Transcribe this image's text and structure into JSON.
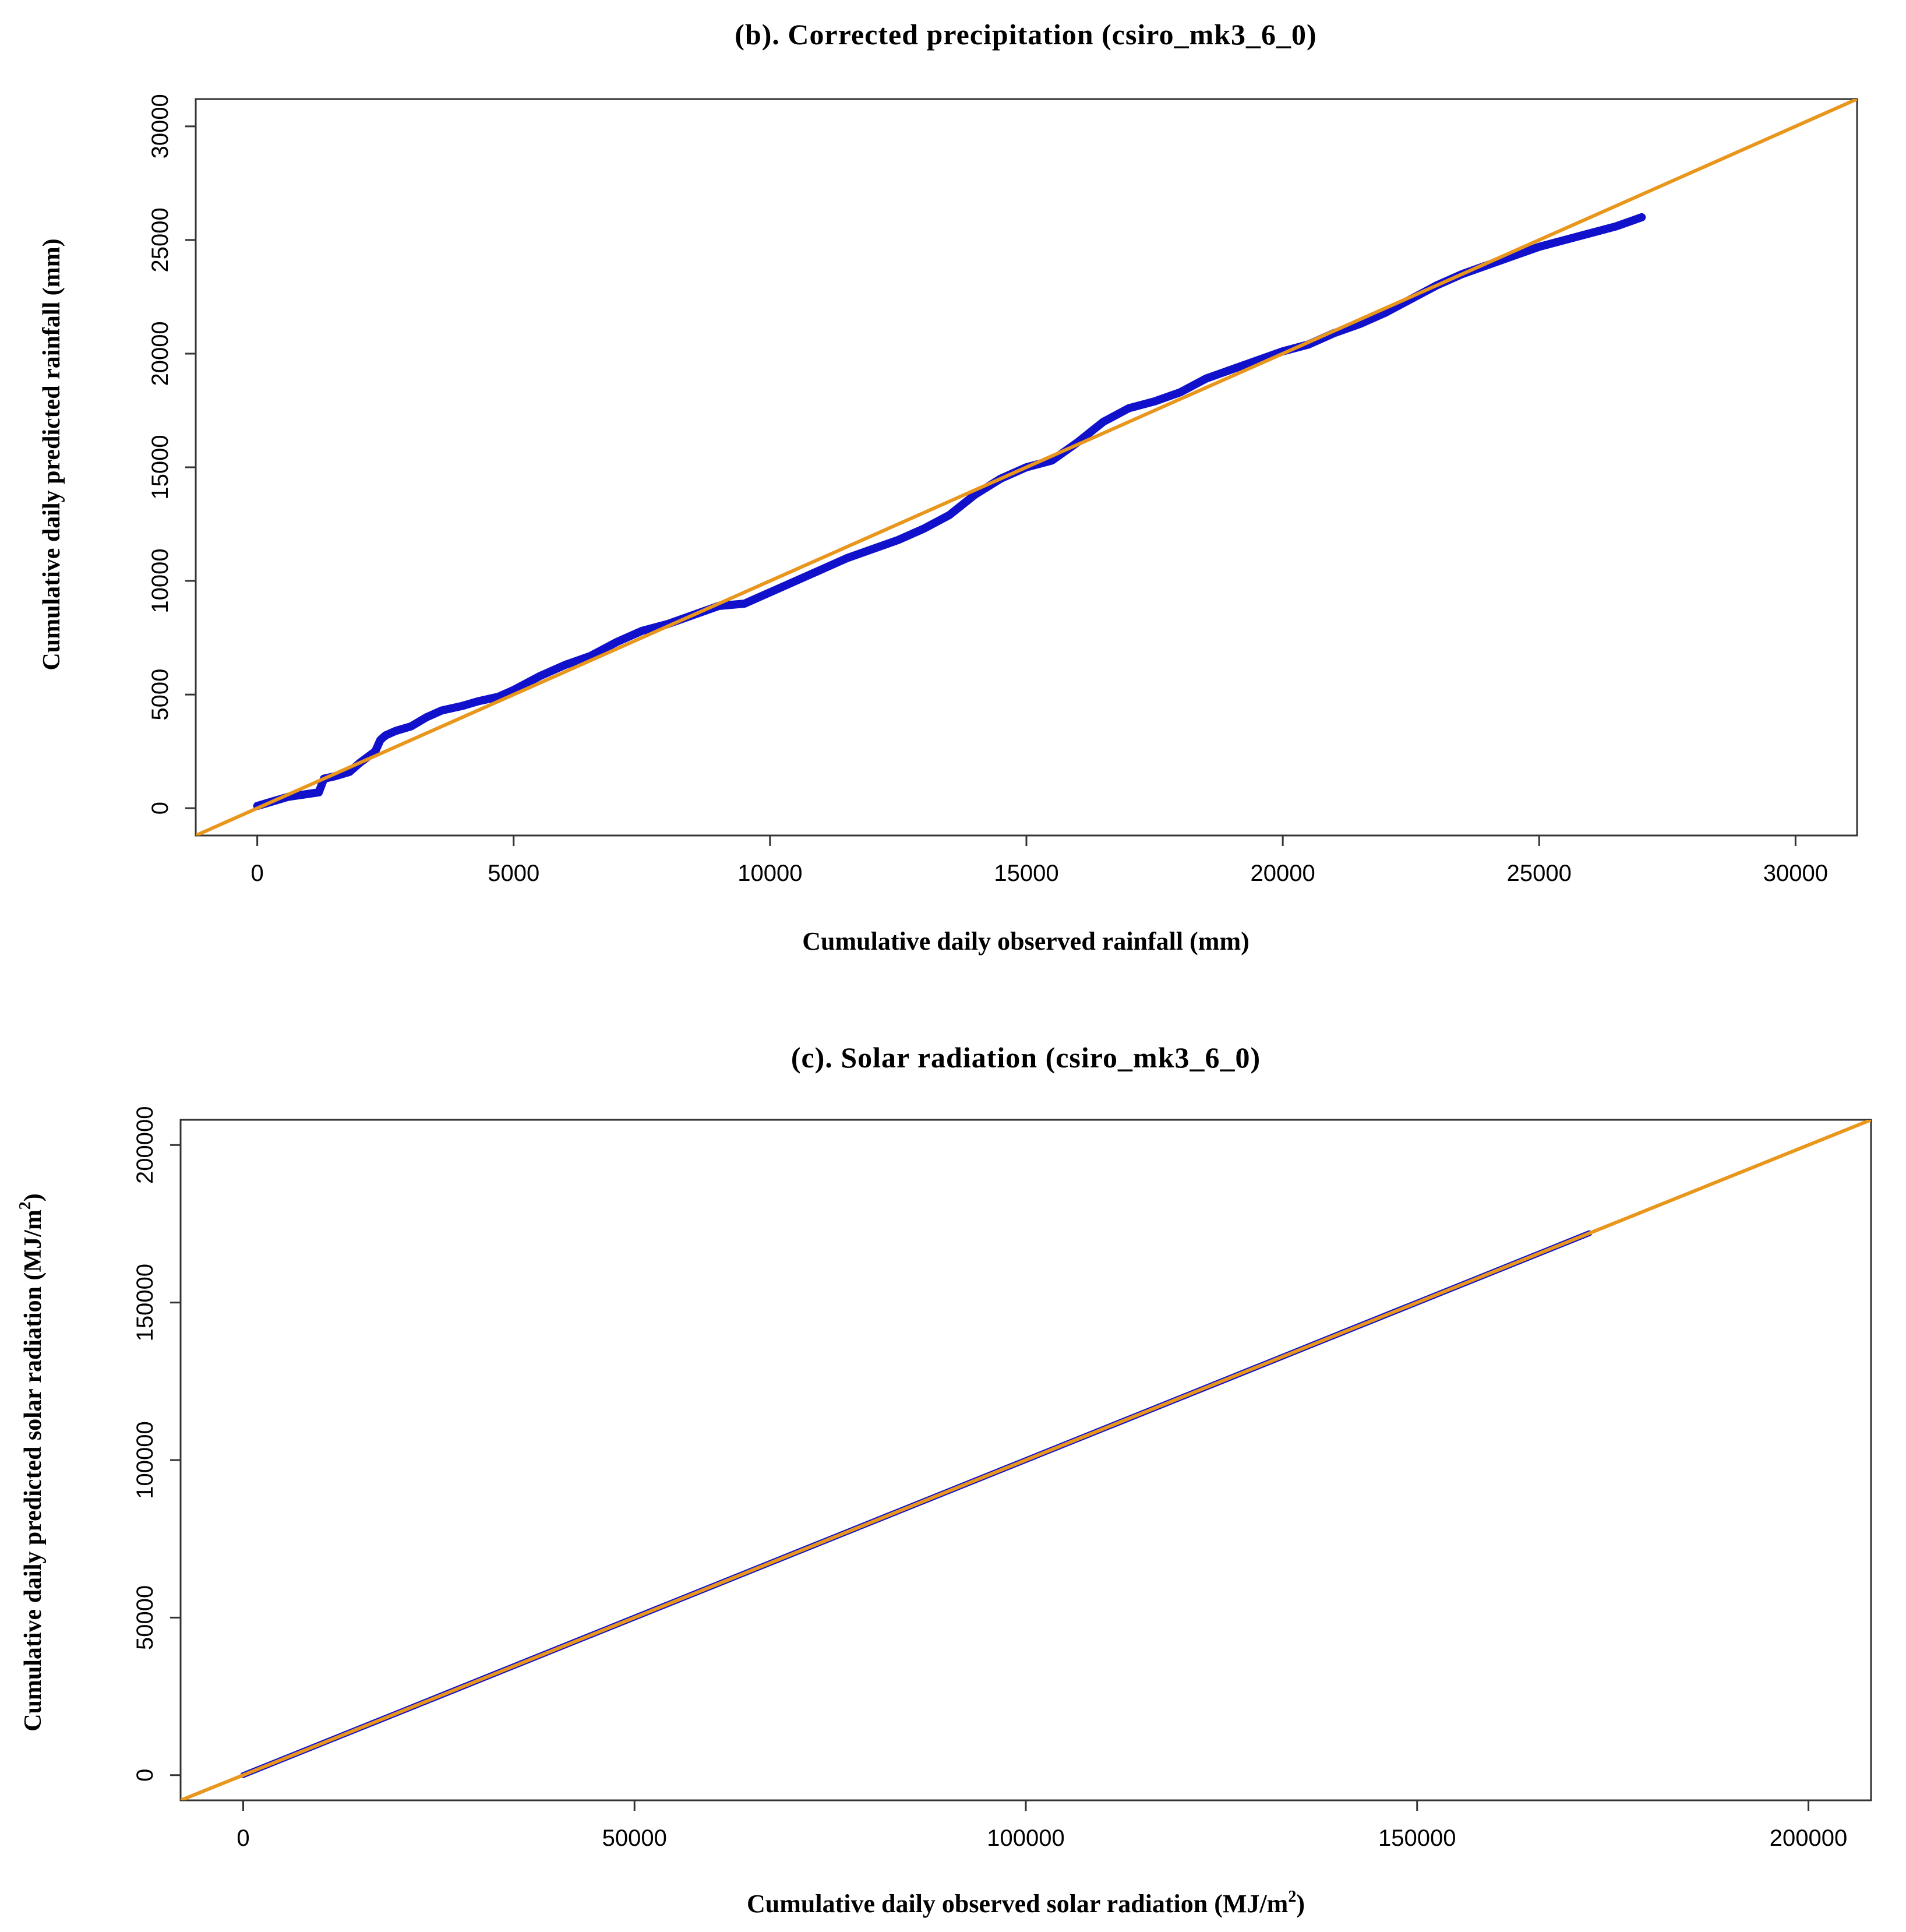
{
  "chart_data": [
    {
      "type": "line",
      "title": "(b). Corrected precipitation (csiro_mk3_6_0)",
      "xlabel": "Cumulative daily observed rainfall (mm)",
      "ylabel": "Cumulative daily predicted rainfall (mm)",
      "xlim": [
        -1200,
        31200
      ],
      "ylim": [
        -1200,
        31200
      ],
      "xticks": [
        0,
        5000,
        10000,
        15000,
        20000,
        25000,
        30000
      ],
      "yticks": [
        0,
        5000,
        10000,
        15000,
        20000,
        25000,
        30000
      ],
      "colors": {
        "series": "#1111cc",
        "reference": "#e8961c"
      },
      "series": [
        {
          "name": "Cumulative predicted vs observed",
          "x": [
            0,
            300,
            600,
            900,
            1200,
            1300,
            1500,
            1800,
            2000,
            2300,
            2400,
            2500,
            2700,
            3000,
            3300,
            3600,
            4000,
            4300,
            4700,
            5000,
            5500,
            6000,
            6500,
            7000,
            7500,
            8000,
            8500,
            9000,
            9500,
            10000,
            10500,
            11000,
            11500,
            12000,
            12500,
            13000,
            13500,
            14000,
            14500,
            15000,
            15500,
            16000,
            16500,
            17000,
            17500,
            18000,
            18500,
            19000,
            19500,
            20000,
            20500,
            21000,
            21500,
            22000,
            22500,
            23000,
            23500,
            24000,
            24500,
            25000,
            25500,
            26000,
            26500,
            27000
          ],
          "y": [
            100,
            300,
            500,
            600,
            700,
            1300,
            1400,
            1600,
            2000,
            2500,
            3000,
            3200,
            3400,
            3600,
            4000,
            4300,
            4500,
            4700,
            4900,
            5200,
            5800,
            6300,
            6700,
            7300,
            7800,
            8100,
            8500,
            8900,
            9000,
            9500,
            10000,
            10500,
            11000,
            11400,
            11800,
            12300,
            12900,
            13800,
            14500,
            15000,
            15300,
            16100,
            17000,
            17600,
            17900,
            18300,
            18900,
            19300,
            19700,
            20100,
            20400,
            20900,
            21300,
            21800,
            22400,
            23000,
            23500,
            23900,
            24300,
            24700,
            25000,
            25300,
            25600,
            26000
          ]
        },
        {
          "name": "1:1 line",
          "x": [
            -1200,
            31200
          ],
          "y": [
            -1200,
            31200
          ]
        }
      ]
    },
    {
      "type": "line",
      "title": "(c). Solar radiation (csiro_mk3_6_0)",
      "xlabel": "Cumulative daily observed solar radiation (MJ/m",
      "xlabel_sup": "2",
      "xlabel_end": ")",
      "ylabel": "Cumulative daily predicted solar radiation (MJ/m",
      "ylabel_sup": "2",
      "ylabel_end": ")",
      "xlim": [
        -8000,
        208000
      ],
      "ylim": [
        -8000,
        208000
      ],
      "xticks": [
        0,
        50000,
        100000,
        150000,
        200000
      ],
      "yticks": [
        0,
        50000,
        100000,
        150000,
        200000
      ],
      "colors": {
        "series": "#1111cc",
        "reference": "#e8961c"
      },
      "series": [
        {
          "name": "Cumulative predicted vs observed",
          "x": [
            0,
            20000,
            40000,
            60000,
            80000,
            100000,
            120000,
            140000,
            160000,
            172000
          ],
          "y": [
            0,
            20000,
            40000,
            60000,
            80000,
            100000,
            120000,
            140000,
            160000,
            172000
          ]
        },
        {
          "name": "1:1 line",
          "x": [
            -8000,
            208000
          ],
          "y": [
            -8000,
            208000
          ]
        }
      ]
    }
  ]
}
